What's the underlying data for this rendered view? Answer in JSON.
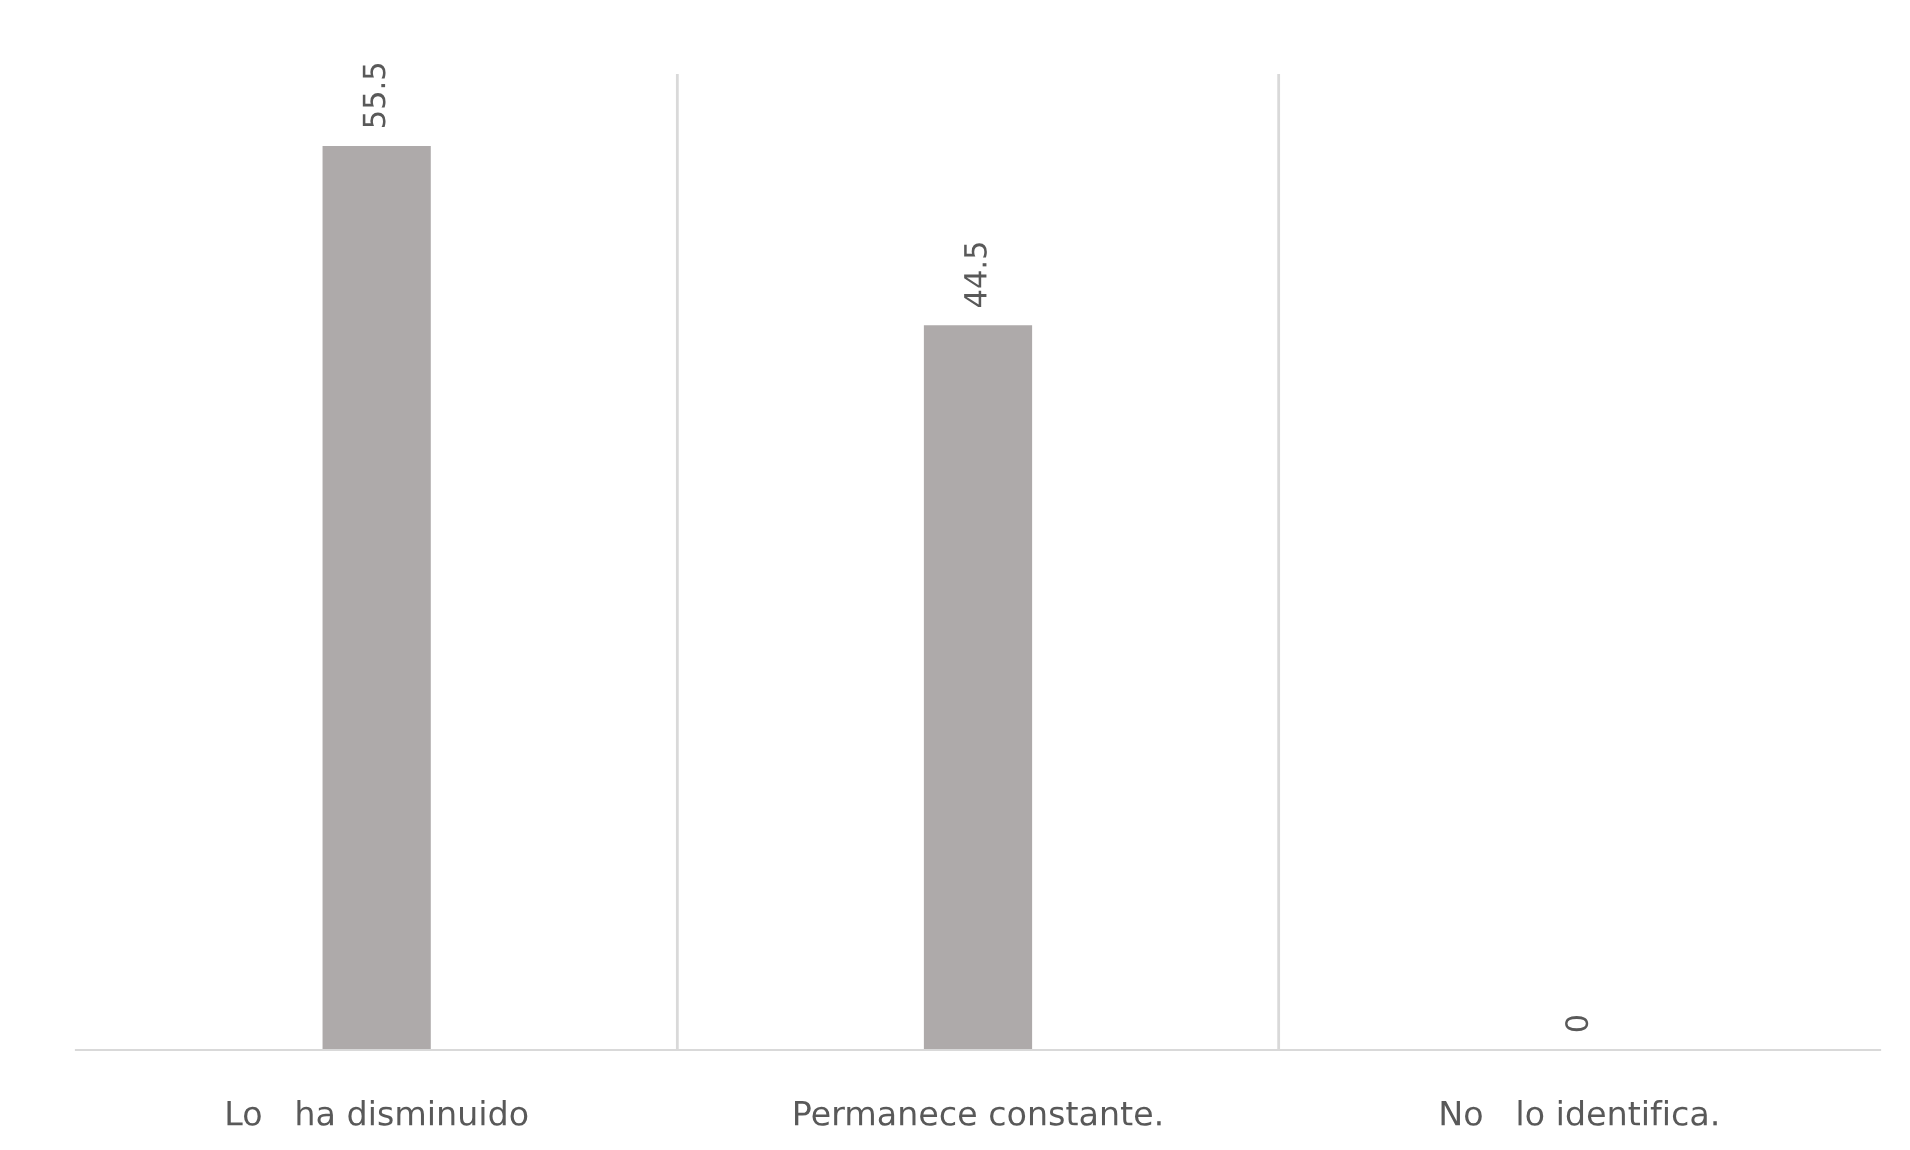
{
  "chart_data": {
    "type": "bar",
    "categories": [
      "Lo   ha disminuido",
      "Permanece constante.",
      "No   lo identifica."
    ],
    "values": [
      55.5,
      44.5,
      0
    ],
    "color": "#aeaaaa",
    "data_labels": true,
    "grid": "x"
  }
}
